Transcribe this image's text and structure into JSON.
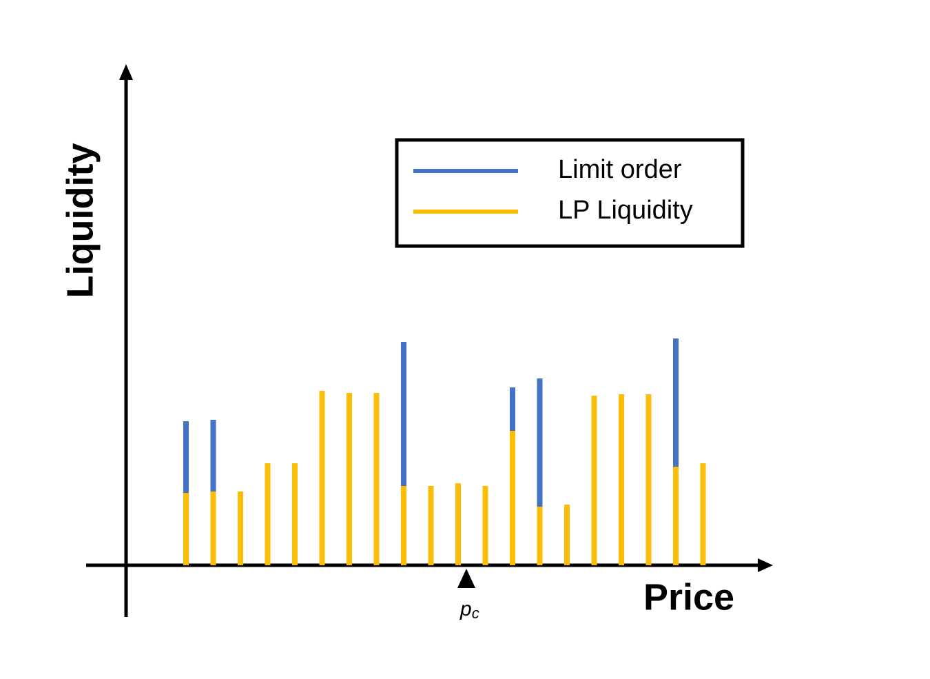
{
  "chart_data": {
    "type": "bar",
    "stacked": true,
    "x_label": "Price",
    "y_label": "Liquidity",
    "categories": [
      null,
      null,
      null,
      null,
      null,
      null,
      null,
      null,
      null,
      null,
      null,
      null,
      null,
      null,
      null,
      null,
      null,
      null,
      null,
      null
    ],
    "series": [
      {
        "name": "LP Liquidity",
        "color": "#fbbd08",
        "values": [
          10.5,
          10.7,
          10.7,
          14.8,
          14.8,
          25.3,
          25,
          25,
          11.5,
          11.5,
          11.9,
          11.5,
          19.5,
          8.5,
          8.8,
          24.6,
          24.8,
          24.8,
          14.3,
          14.8
        ]
      },
      {
        "name": "Limit order",
        "color": "#4472c4",
        "values": [
          10.4,
          10.4,
          0,
          0,
          0,
          0,
          0,
          0,
          20.9,
          0,
          0,
          0,
          6.3,
          18.6,
          0,
          0,
          0,
          0,
          18.6,
          0
        ]
      }
    ],
    "legend_order": [
      1,
      0
    ],
    "legend": "upper right",
    "ylim": [
      0,
      72.5
    ],
    "annotations": [
      {
        "text": "p",
        "subscript": "c"
      }
    ]
  }
}
